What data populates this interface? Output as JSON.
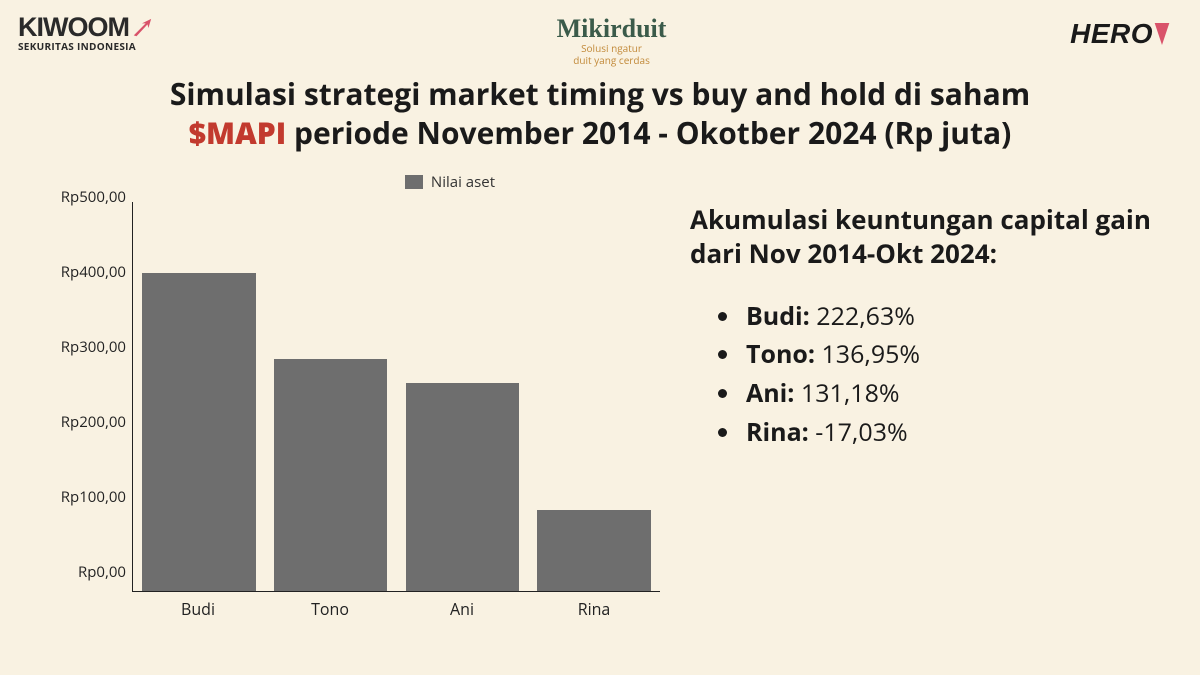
{
  "logos": {
    "kiwoom": {
      "main": "KIWOOM",
      "sub": "SEKURITAS INDONESIA",
      "arrow_color": "#d9536a"
    },
    "mikirduit": {
      "title": "Mikirduit",
      "sub_line1": "Solusi ngatur",
      "sub_line2": "duit yang cerdas",
      "title_color": "#3b5b4a",
      "sub_color": "#c28a3a"
    },
    "hero": {
      "text": "HERO",
      "accent_color": "#d9536a"
    }
  },
  "title": {
    "line1": "Simulasi strategi market timing vs buy and hold di saham",
    "ticker": "$MAPI",
    "line2_rest": " periode November 2014 - Okotber 2024 (Rp juta)",
    "ticker_color": "#c23a2e"
  },
  "chart": {
    "type": "bar",
    "legend_label": "Nilai aset",
    "bar_color": "#6e6e6e",
    "background_color": "#f9f2e2",
    "y_max": 520,
    "y_ticks": [
      {
        "value": 0,
        "label": "Rp0,00"
      },
      {
        "value": 100,
        "label": "Rp100,00"
      },
      {
        "value": 200,
        "label": "Rp200,00"
      },
      {
        "value": 300,
        "label": "Rp300,00"
      },
      {
        "value": 400,
        "label": "Rp400,00"
      },
      {
        "value": 500,
        "label": "Rp500,00"
      }
    ],
    "categories": [
      "Budi",
      "Tono",
      "Ani",
      "Rina"
    ],
    "values": [
      425,
      310,
      278,
      108
    ],
    "axis_font_size": 15,
    "legend_font_size": 15
  },
  "side": {
    "heading": "Akumulasi keuntungan capital gain dari Nov 2014-Okt 2024:",
    "gains": [
      {
        "name": "Budi:",
        "value": " 222,63%"
      },
      {
        "name": "Tono:",
        "value": " 136,95%"
      },
      {
        "name": "Ani:",
        "value": " 131,18%"
      },
      {
        "name": "Rina:",
        "value": " -17,03%"
      }
    ],
    "heading_font_size": 26,
    "list_font_size": 25
  }
}
